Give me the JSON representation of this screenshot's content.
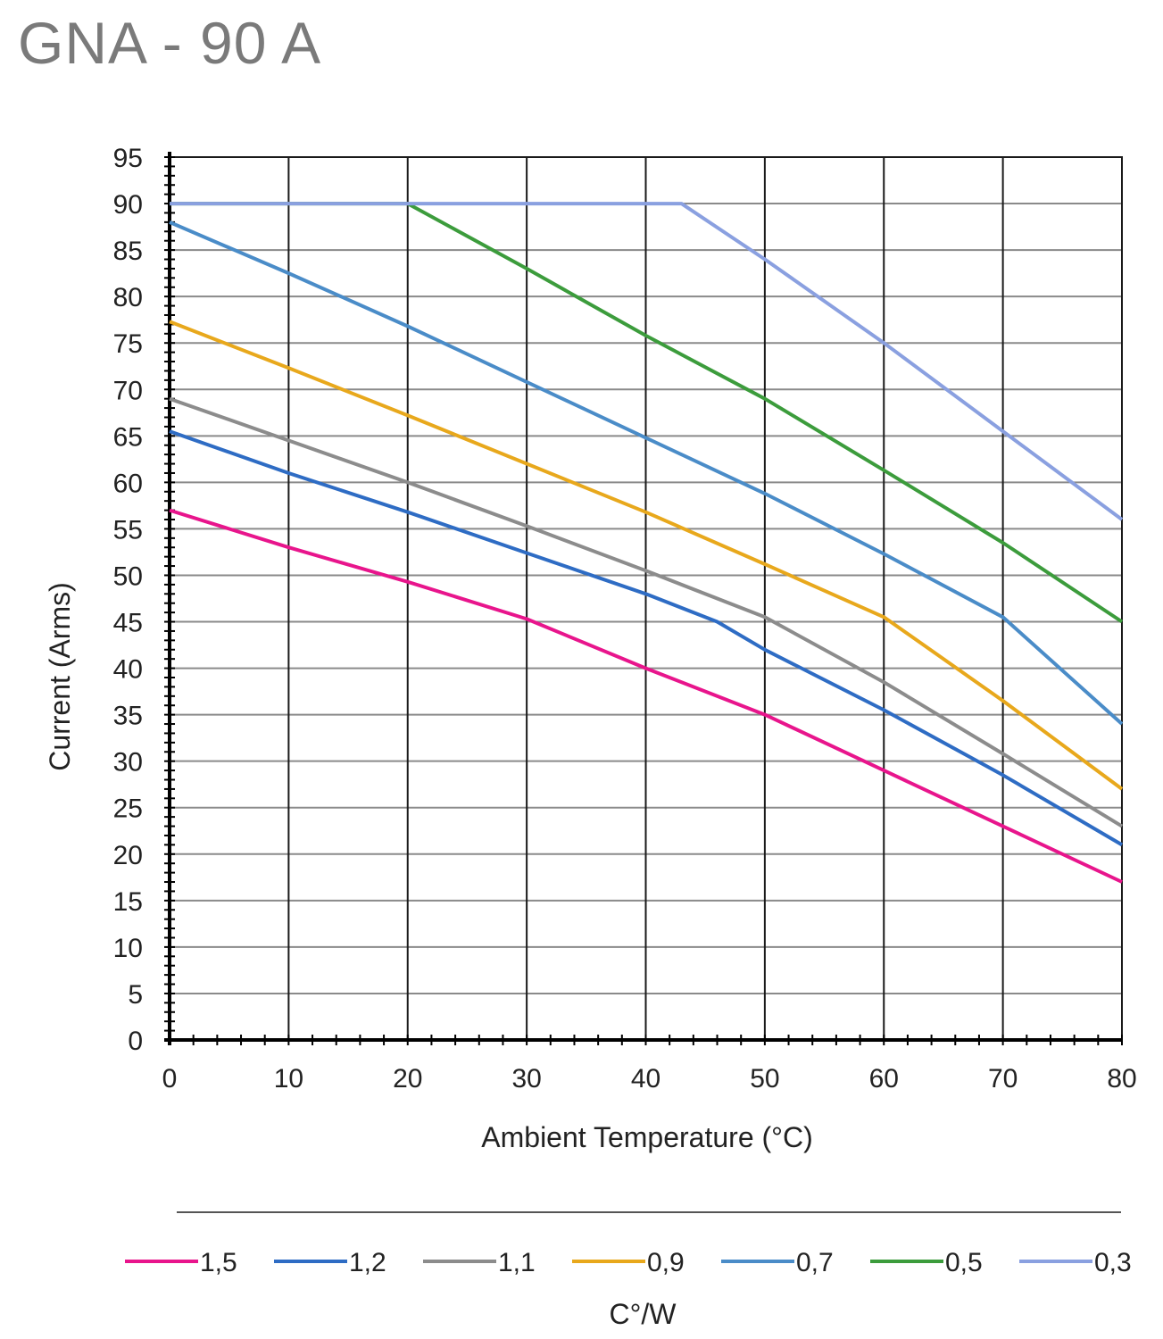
{
  "chart_data": {
    "type": "line",
    "title": "GNA - 90 A",
    "xlabel": "Ambient Temperature (°C)",
    "ylabel": "Current (Arms)",
    "legend_title": "C°/W",
    "xlim": [
      0,
      80
    ],
    "ylim": [
      0,
      95
    ],
    "x_ticks": [
      0,
      10,
      20,
      30,
      40,
      50,
      60,
      70,
      80
    ],
    "y_ticks": [
      0,
      5,
      10,
      15,
      20,
      25,
      30,
      35,
      40,
      45,
      50,
      55,
      60,
      65,
      70,
      75,
      80,
      85,
      90,
      95
    ],
    "grid": true,
    "legend_position": "bottom",
    "series": [
      {
        "name": "1,5",
        "color": "#e8158c",
        "points": [
          [
            0,
            57
          ],
          [
            10,
            53
          ],
          [
            20,
            49.3
          ],
          [
            30,
            45.3
          ],
          [
            40,
            40
          ],
          [
            50,
            35
          ],
          [
            60,
            29
          ],
          [
            70,
            23
          ],
          [
            80,
            17
          ]
        ]
      },
      {
        "name": "1,2",
        "color": "#2e6cc4",
        "points": [
          [
            0,
            65.5
          ],
          [
            10,
            61
          ],
          [
            20,
            56.8
          ],
          [
            30,
            52.4
          ],
          [
            40,
            48
          ],
          [
            46,
            45
          ],
          [
            50,
            42
          ],
          [
            60,
            35.5
          ],
          [
            70,
            28.5
          ],
          [
            80,
            21
          ]
        ]
      },
      {
        "name": "1,1",
        "color": "#8c8c8c",
        "points": [
          [
            0,
            69
          ],
          [
            10,
            64.5
          ],
          [
            20,
            60
          ],
          [
            30,
            55.3
          ],
          [
            40,
            50.5
          ],
          [
            50,
            45.5
          ],
          [
            60,
            38.5
          ],
          [
            70,
            30.8
          ],
          [
            80,
            23
          ]
        ]
      },
      {
        "name": "0,9",
        "color": "#e8a81c",
        "points": [
          [
            0,
            77.3
          ],
          [
            10,
            72.3
          ],
          [
            20,
            67.2
          ],
          [
            30,
            62
          ],
          [
            40,
            56.8
          ],
          [
            50,
            51.2
          ],
          [
            60,
            45.5
          ],
          [
            70,
            36.5
          ],
          [
            80,
            27
          ]
        ]
      },
      {
        "name": "0,7",
        "color": "#4a8cc8",
        "points": [
          [
            0,
            88
          ],
          [
            10,
            82.5
          ],
          [
            20,
            76.8
          ],
          [
            30,
            70.8
          ],
          [
            40,
            64.8
          ],
          [
            50,
            58.8
          ],
          [
            60,
            52.3
          ],
          [
            70,
            45.5
          ],
          [
            80,
            34
          ]
        ]
      },
      {
        "name": "0,5",
        "color": "#3c9c3c",
        "points": [
          [
            0,
            90
          ],
          [
            20,
            90
          ],
          [
            30,
            83
          ],
          [
            40,
            75.8
          ],
          [
            50,
            69
          ],
          [
            60,
            61.3
          ],
          [
            70,
            53.5
          ],
          [
            80,
            45
          ]
        ]
      },
      {
        "name": "0,3",
        "color": "#8aa0e0",
        "points": [
          [
            0,
            90
          ],
          [
            43,
            90
          ],
          [
            50,
            84
          ],
          [
            60,
            75
          ],
          [
            70,
            65.5
          ],
          [
            80,
            56
          ]
        ]
      }
    ]
  }
}
